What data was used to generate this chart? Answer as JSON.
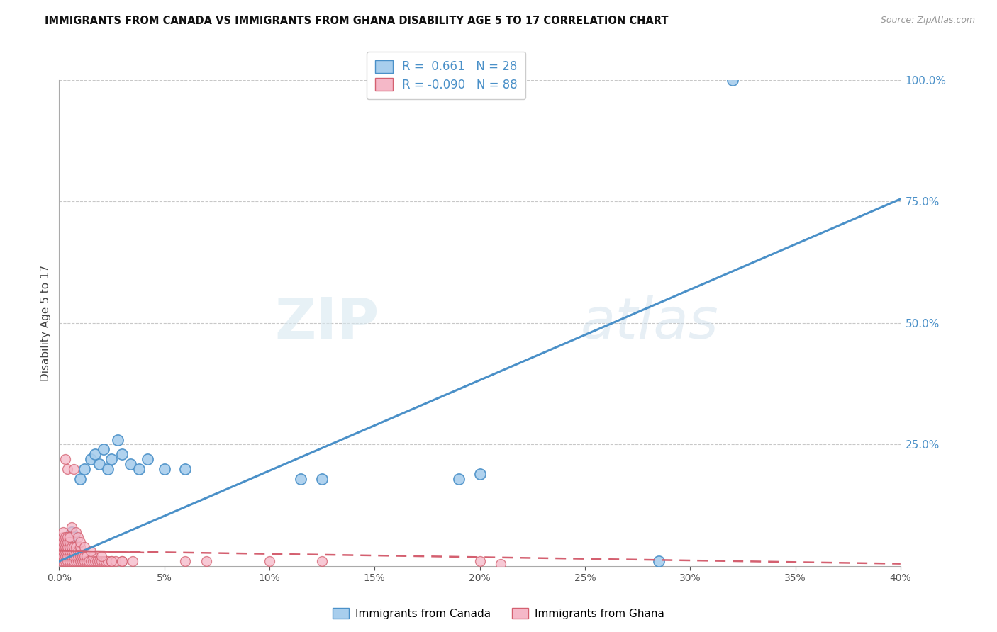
{
  "title": "IMMIGRANTS FROM CANADA VS IMMIGRANTS FROM GHANA DISABILITY AGE 5 TO 17 CORRELATION CHART",
  "source": "Source: ZipAtlas.com",
  "ylabel": "Disability Age 5 to 17",
  "legend_label1": "Immigrants from Canada",
  "legend_label2": "Immigrants from Ghana",
  "R1": 0.661,
  "N1": 28,
  "R2": -0.09,
  "N2": 88,
  "xlim": [
    0.0,
    0.4
  ],
  "ylim": [
    0.0,
    1.0
  ],
  "color_canada": "#A8CEED",
  "color_ghana": "#F5B8C8",
  "color_canada_line": "#4A90C8",
  "color_ghana_line": "#D46070",
  "background": "#FFFFFF",
  "grid_color": "#C8C8C8",
  "canada_x": [
    0.001,
    0.002,
    0.003,
    0.004,
    0.005,
    0.006,
    0.007,
    0.01,
    0.012,
    0.015,
    0.017,
    0.019,
    0.021,
    0.023,
    0.025,
    0.028,
    0.03,
    0.034,
    0.038,
    0.042,
    0.05,
    0.06,
    0.115,
    0.125,
    0.19,
    0.2,
    0.285,
    0.32
  ],
  "canada_y": [
    0.02,
    0.03,
    0.04,
    0.05,
    0.06,
    0.07,
    0.06,
    0.18,
    0.2,
    0.22,
    0.23,
    0.21,
    0.24,
    0.2,
    0.22,
    0.26,
    0.23,
    0.21,
    0.2,
    0.22,
    0.2,
    0.2,
    0.18,
    0.18,
    0.18,
    0.19,
    0.01,
    1.0
  ],
  "ghana_x": [
    0.001,
    0.001,
    0.001,
    0.001,
    0.001,
    0.002,
    0.002,
    0.002,
    0.002,
    0.002,
    0.002,
    0.002,
    0.003,
    0.003,
    0.003,
    0.003,
    0.003,
    0.003,
    0.004,
    0.004,
    0.004,
    0.004,
    0.004,
    0.004,
    0.005,
    0.005,
    0.005,
    0.005,
    0.005,
    0.005,
    0.006,
    0.006,
    0.006,
    0.006,
    0.007,
    0.007,
    0.007,
    0.007,
    0.008,
    0.008,
    0.008,
    0.008,
    0.009,
    0.009,
    0.009,
    0.01,
    0.01,
    0.01,
    0.01,
    0.011,
    0.011,
    0.012,
    0.012,
    0.013,
    0.013,
    0.014,
    0.015,
    0.016,
    0.016,
    0.017,
    0.018,
    0.019,
    0.02,
    0.021,
    0.022,
    0.023,
    0.025,
    0.027,
    0.03,
    0.035,
    0.003,
    0.004,
    0.006,
    0.007,
    0.008,
    0.009,
    0.01,
    0.012,
    0.015,
    0.02,
    0.025,
    0.03,
    0.06,
    0.07,
    0.1,
    0.125,
    0.2,
    0.21
  ],
  "ghana_y": [
    0.01,
    0.02,
    0.03,
    0.04,
    0.05,
    0.01,
    0.02,
    0.03,
    0.04,
    0.05,
    0.06,
    0.07,
    0.01,
    0.02,
    0.03,
    0.04,
    0.05,
    0.06,
    0.01,
    0.02,
    0.03,
    0.04,
    0.05,
    0.06,
    0.01,
    0.02,
    0.03,
    0.04,
    0.05,
    0.06,
    0.01,
    0.02,
    0.03,
    0.04,
    0.01,
    0.02,
    0.03,
    0.04,
    0.01,
    0.02,
    0.03,
    0.04,
    0.01,
    0.02,
    0.03,
    0.01,
    0.02,
    0.03,
    0.04,
    0.01,
    0.02,
    0.01,
    0.02,
    0.01,
    0.02,
    0.01,
    0.01,
    0.01,
    0.02,
    0.01,
    0.01,
    0.01,
    0.01,
    0.01,
    0.01,
    0.01,
    0.01,
    0.01,
    0.01,
    0.01,
    0.22,
    0.2,
    0.08,
    0.2,
    0.07,
    0.06,
    0.05,
    0.04,
    0.03,
    0.02,
    0.01,
    0.01,
    0.01,
    0.01,
    0.01,
    0.01,
    0.01,
    0.005
  ],
  "canada_trendline": [
    0.0,
    0.4,
    0.01,
    0.755
  ],
  "ghana_trendline": [
    0.0,
    0.4,
    0.032,
    0.005
  ]
}
